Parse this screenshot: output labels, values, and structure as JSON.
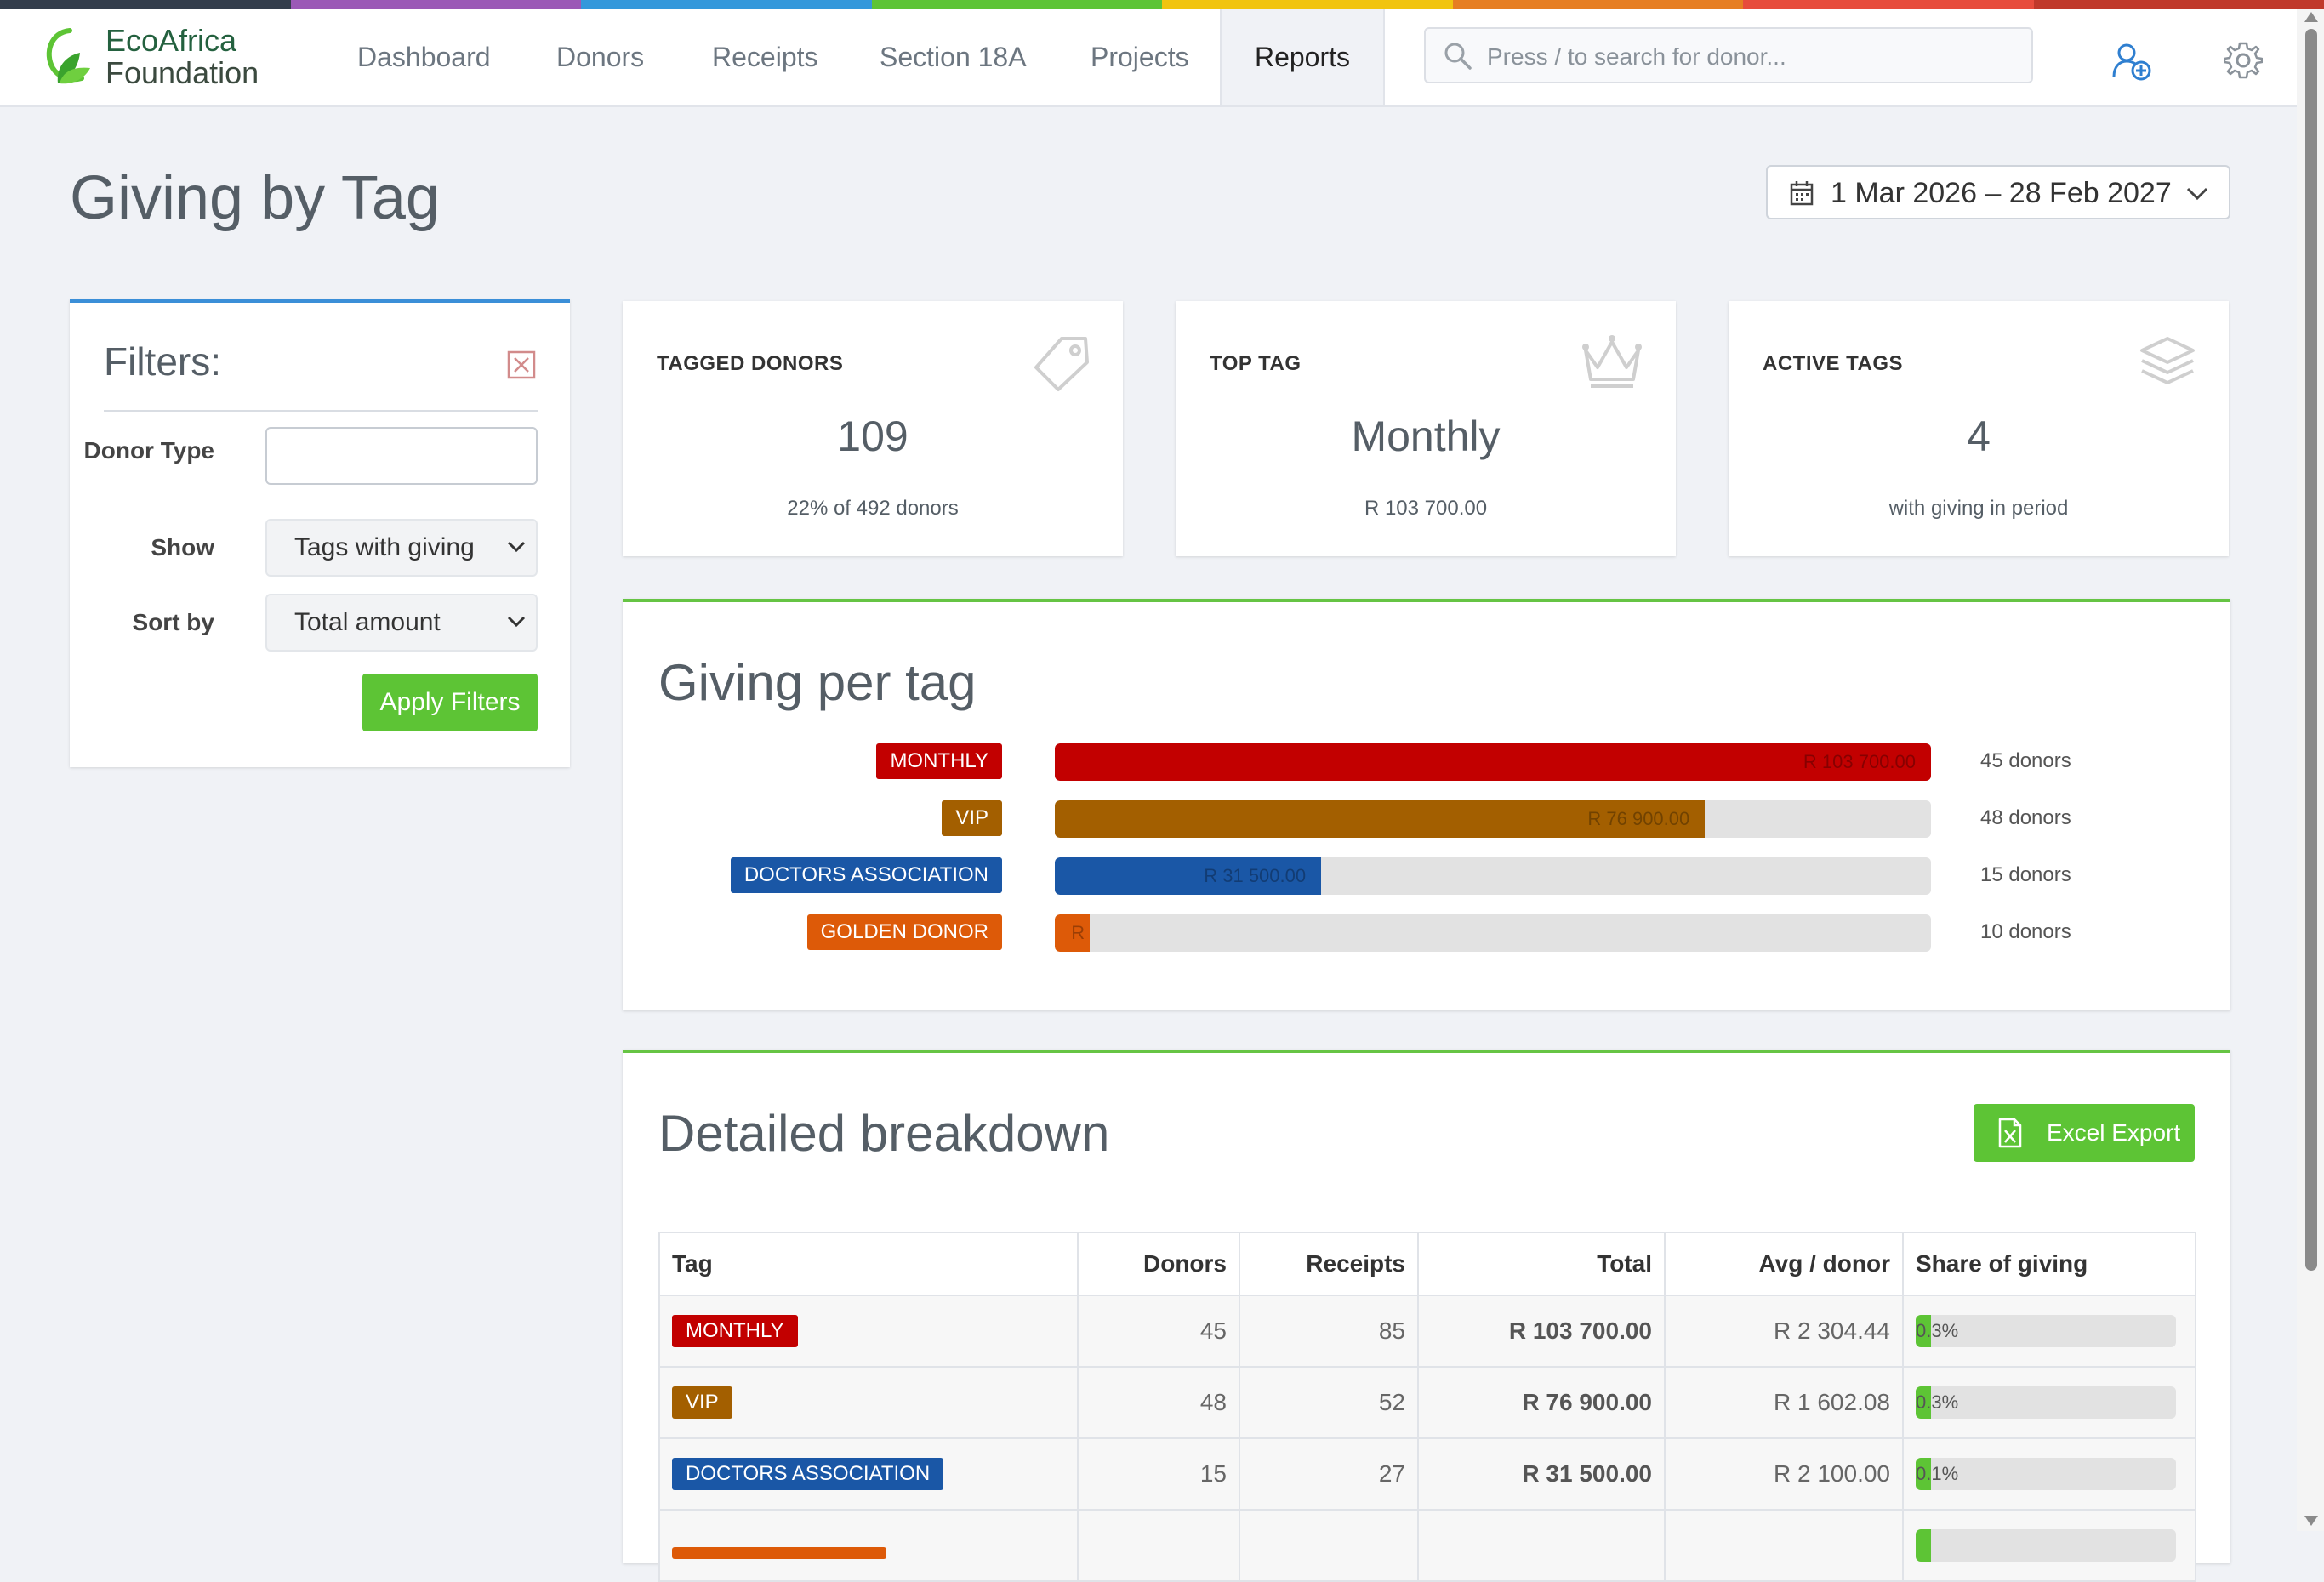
{
  "colors": {
    "rainbow": [
      "#343e4c",
      "#9b59b6",
      "#3498db",
      "#5dc435",
      "#f1c40f",
      "#e67e22",
      "#e74c3c",
      "#c0392b"
    ],
    "accent_green": "#5dc435",
    "tag_monthly": "#c20000",
    "tag_vip": "#a35f00",
    "tag_doctors": "#1a57a6",
    "tag_golden": "#dd5a08"
  },
  "brand": {
    "line1": "EcoAfrica",
    "line2": "Foundation"
  },
  "nav": {
    "items": [
      "Dashboard",
      "Donors",
      "Receipts",
      "Section 18A",
      "Projects",
      "Reports"
    ],
    "active": "Reports",
    "search_placeholder": "Press / to search for donor..."
  },
  "page": {
    "title": "Giving by Tag",
    "date_range": "1 Mar 2026 – 28 Feb 2027"
  },
  "filters": {
    "title": "Filters:",
    "donor_type_label": "Donor Type",
    "donor_type_value": "",
    "show_label": "Show",
    "show_value": "Tags with giving",
    "sort_label": "Sort by",
    "sort_value": "Total amount",
    "apply_label": "Apply Filters"
  },
  "stats": [
    {
      "label": "TAGGED DONORS",
      "value": "109",
      "sub": "22% of 492 donors",
      "icon": "tag-icon"
    },
    {
      "label": "TOP TAG",
      "value": "Monthly",
      "sub": "R 103 700.00",
      "icon": "crown-icon"
    },
    {
      "label": "ACTIVE TAGS",
      "value": "4",
      "sub": "with giving in period",
      "icon": "layers-icon"
    }
  ],
  "giving_per_tag": {
    "title": "Giving per tag",
    "rows": [
      {
        "tag": "MONTHLY",
        "amount": "R 103 700.00",
        "fraction": 1.0,
        "donors": "45 donors",
        "color": "#c20000"
      },
      {
        "tag": "VIP",
        "amount": "R 76 900.00",
        "fraction": 0.742,
        "donors": "48 donors",
        "color": "#a35f00"
      },
      {
        "tag": "DOCTORS ASSOCIATION",
        "amount": "R 31 500.00",
        "fraction": 0.304,
        "donors": "15 donors",
        "color": "#1a57a6"
      },
      {
        "tag": "GOLDEN DONOR",
        "amount": "R",
        "fraction": 0.04,
        "donors": "10 donors",
        "color": "#dd5a08"
      }
    ]
  },
  "breakdown": {
    "title": "Detailed breakdown",
    "export_label": "Excel Export",
    "columns": [
      "Tag",
      "Donors",
      "Receipts",
      "Total",
      "Avg / donor",
      "Share of giving"
    ],
    "rows": [
      {
        "tag": "MONTHLY",
        "donors": "45",
        "receipts": "85",
        "total": "R 103 700.00",
        "avg": "R 2 304.44",
        "share": "0.3%",
        "share_fraction": 0.06,
        "color": "#c20000"
      },
      {
        "tag": "VIP",
        "donors": "48",
        "receipts": "52",
        "total": "R 76 900.00",
        "avg": "R 1 602.08",
        "share": "0.3%",
        "share_fraction": 0.06,
        "color": "#a35f00"
      },
      {
        "tag": "DOCTORS ASSOCIATION",
        "donors": "15",
        "receipts": "27",
        "total": "R 31 500.00",
        "avg": "R 2 100.00",
        "share": "0.1%",
        "share_fraction": 0.06,
        "color": "#1a57a6"
      },
      {
        "tag": "",
        "donors": "",
        "receipts": "",
        "total": "",
        "avg": "",
        "share": "",
        "share_fraction": 0.06,
        "color": "#dd5a08"
      }
    ]
  }
}
